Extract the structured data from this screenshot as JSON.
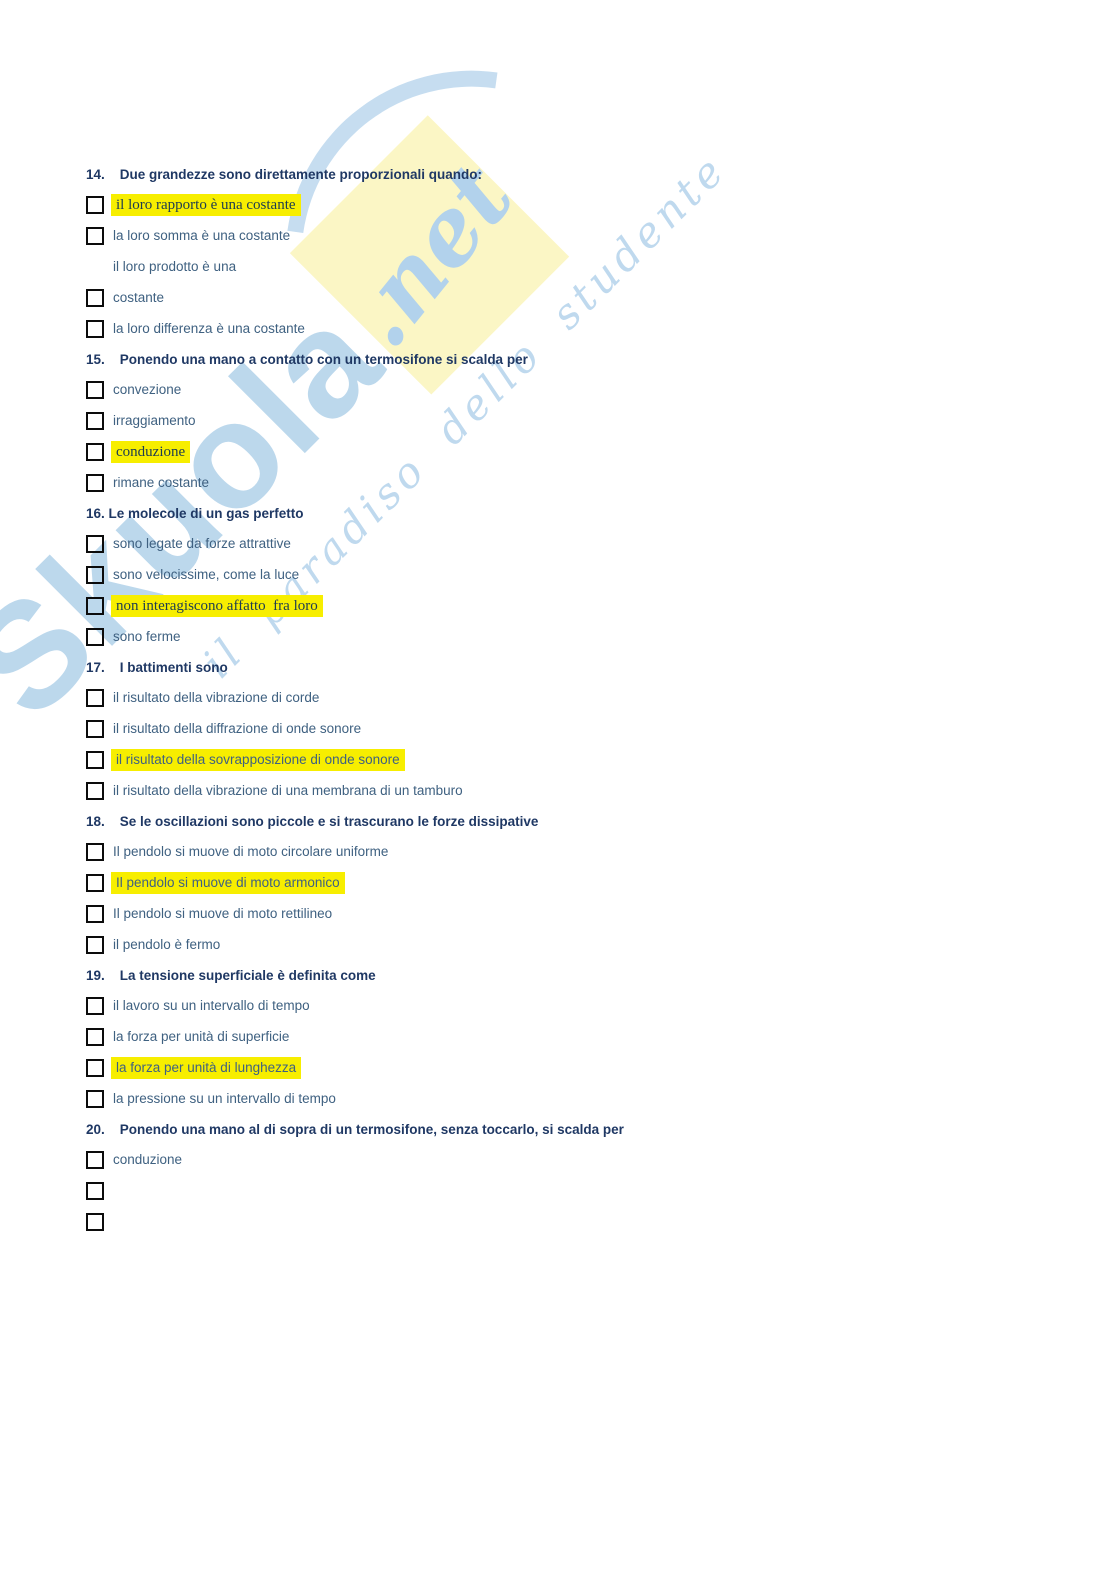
{
  "watermark": {
    "brand_main": "Skuola",
    "brand_suffix": ".net",
    "tagline": "il paradiso dello studente",
    "colors": {
      "blue": "#b9d6ec",
      "yellow": "#fbf6c2"
    }
  },
  "colors": {
    "question_header": "#1f3864",
    "option_text": "#3f6181",
    "highlight": "#f7ee00",
    "highlight_serif_text": "#1d3c50"
  },
  "quiz": {
    "questions": [
      {
        "header": "14.    Due grandezze sono direttamente proporzionali quando:",
        "options": [
          {
            "text": "il loro rapporto è una costante",
            "checkbox": true,
            "highlight": "serif"
          },
          {
            "text": "la loro somma è una costante",
            "checkbox": true,
            "highlight": "none"
          },
          {
            "text": "il loro prodotto è una",
            "checkbox": false,
            "highlight": "none"
          },
          {
            "text": "costante",
            "checkbox": true,
            "highlight": "none"
          },
          {
            "text": "la loro differenza è una costante",
            "checkbox": true,
            "highlight": "none"
          }
        ]
      },
      {
        "header": "15.    Ponendo una mano a contatto con un termosifone si scalda per",
        "options": [
          {
            "text": "convezione",
            "checkbox": true,
            "highlight": "none"
          },
          {
            "text": "irraggiamento",
            "checkbox": true,
            "highlight": "none"
          },
          {
            "text": "conduzione",
            "checkbox": true,
            "highlight": "serif"
          },
          {
            "text": "rimane costante",
            "checkbox": true,
            "highlight": "none"
          }
        ]
      },
      {
        "header": "16. Le molecole di un gas perfetto",
        "options": [
          {
            "text": "sono legate da forze attrattive",
            "checkbox": true,
            "highlight": "none"
          },
          {
            "text": "sono velocissime, come la luce",
            "checkbox": true,
            "highlight": "none"
          },
          {
            "text": "non interagiscono affatto  fra loro",
            "checkbox": true,
            "highlight": "serif"
          },
          {
            "text": "sono ferme",
            "checkbox": true,
            "highlight": "none"
          }
        ]
      },
      {
        "header": "17.    I battimenti sono",
        "options": [
          {
            "text": "il risultato della vibrazione di corde",
            "checkbox": true,
            "highlight": "none"
          },
          {
            "text": "il risultato della diffrazione di onde sonore",
            "checkbox": true,
            "highlight": "none"
          },
          {
            "text": "il risultato della sovrapposizione di onde sonore",
            "checkbox": true,
            "highlight": "sans"
          },
          {
            "text": "il risultato della vibrazione di una membrana di un tamburo",
            "checkbox": true,
            "highlight": "none"
          }
        ]
      },
      {
        "header": "18.    Se le oscillazioni sono piccole e si trascurano le forze dissipative",
        "options": [
          {
            "text": "Il pendolo si muove di moto circolare uniforme",
            "checkbox": true,
            "highlight": "none"
          },
          {
            "text": "Il pendolo si muove di moto armonico",
            "checkbox": true,
            "highlight": "sans"
          },
          {
            "text": "Il pendolo si muove di moto rettilineo",
            "checkbox": true,
            "highlight": "none"
          },
          {
            "text": "il pendolo è fermo",
            "checkbox": true,
            "highlight": "none"
          }
        ]
      },
      {
        "header": "19.    La tensione superficiale è definita come",
        "options": [
          {
            "text": "il lavoro su un intervallo di tempo",
            "checkbox": true,
            "highlight": "none"
          },
          {
            "text": "la forza per unità di superficie",
            "checkbox": true,
            "highlight": "none"
          },
          {
            "text": "la forza per unità di lunghezza",
            "checkbox": true,
            "highlight": "sans"
          },
          {
            "text": "la pressione su un intervallo di tempo",
            "checkbox": true,
            "highlight": "none"
          }
        ]
      },
      {
        "header": "20.    Ponendo una mano al di sopra di un termosifone, senza toccarlo, si scalda per",
        "options": [
          {
            "text": "conduzione",
            "checkbox": true,
            "highlight": "none"
          },
          {
            "text": "",
            "checkbox": true,
            "highlight": "none"
          },
          {
            "text": "",
            "checkbox": true,
            "highlight": "none"
          }
        ]
      }
    ]
  }
}
